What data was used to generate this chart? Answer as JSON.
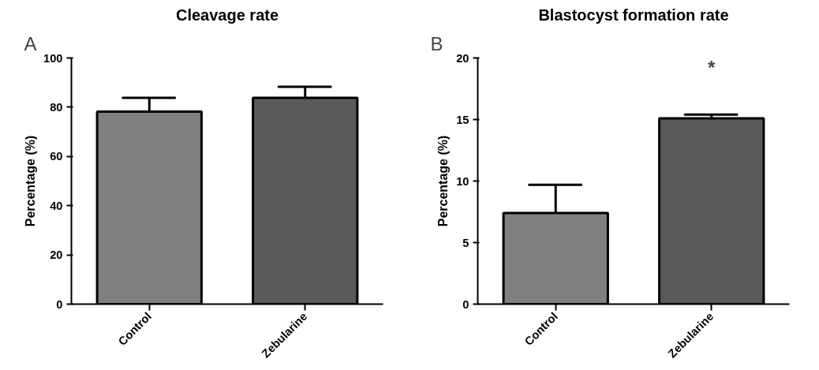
{
  "chart_data": [
    {
      "type": "bar",
      "title": "Cleavage rate",
      "ylabel": "Percentage (%)",
      "categories": [
        "Control",
        "Zebularine"
      ],
      "values": [
        78.2,
        83.8
      ],
      "errors": [
        5.6,
        4.5
      ],
      "colors": [
        "#808080",
        "#5a5a5a"
      ],
      "ylim": [
        0,
        100
      ],
      "yticks": [
        0,
        20,
        40,
        60,
        80,
        100
      ],
      "annotations": [
        "A"
      ]
    },
    {
      "type": "bar",
      "title": "Blastocyst formation rate",
      "ylabel": "Percentage (%)",
      "categories": [
        "Control",
        "Zebularine"
      ],
      "values": [
        7.4,
        15.1
      ],
      "errors": [
        2.3,
        0.3
      ],
      "colors": [
        "#808080",
        "#5a5a5a"
      ],
      "ylim": [
        0,
        20
      ],
      "yticks": [
        0,
        5,
        10,
        15,
        20
      ],
      "annotations": [
        "B",
        "*"
      ]
    }
  ]
}
